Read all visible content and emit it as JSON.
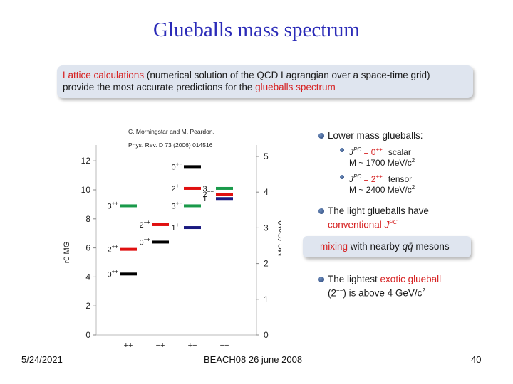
{
  "title": "Glueballs mass spectrum",
  "banner": {
    "part1_red": "Lattice calculations",
    "part1_rest": " (numerical solution of the QCD Lagrangian over a space-time grid)",
    "part2_start": "provide the most accurate predictions for the ",
    "part2_red": "glueballs spectrum"
  },
  "reference": {
    "authors": "C. Morningstar and M. Peardon,",
    "journal": "Phys. Rev. D 73 (2006) 014516"
  },
  "bullets": {
    "lower_mass": "Lower mass glueballs:",
    "scalar_jpc": "J",
    "scalar_sup": "PC",
    "scalar_eq": " = 0",
    "scalar_sup2": "++",
    "scalar_label": "scalar",
    "scalar_mass": "M ~ 1700 MeV/c",
    "scalar_mass_sup": "2",
    "tensor_jpc": "J",
    "tensor_sup": "PC",
    "tensor_eq": " = 2",
    "tensor_sup2": "++",
    "tensor_label": "tensor",
    "tensor_mass": "M ~ 2400 MeV/c",
    "tensor_mass_sup": "2",
    "light_line1": "The light glueballs have",
    "light_line2": "conventional ",
    "light_jpc": "J",
    "light_sup": "PC",
    "mixing_red": "mixing",
    "mixing_rest": " with nearby ",
    "mixing_qq": "qq̄",
    "mixing_end": " mesons",
    "exotic_start": "The lightest ",
    "exotic_red": "exotic glueball",
    "exotic_line2": "(2",
    "exotic_sup": "+−",
    "exotic_end": ") is above 4 GeV/c",
    "exotic_sup2": "2"
  },
  "footer": {
    "date": "5/24/2021",
    "event": "BEACH08 26 june 2008",
    "page": "40"
  },
  "colors": {
    "title": "#2b2bb8",
    "accent_red": "#d62020",
    "black_level": "#000000",
    "red_level": "#e01010",
    "green_level": "#1a9a4a",
    "blue_level": "#1a1a80"
  },
  "chart_data": {
    "type": "level-diagram",
    "ylabel_left": "r0 MG",
    "ylabel_right": "MG (GeV)",
    "yticks_left": [
      "0",
      "2",
      "4",
      "6",
      "8",
      "10",
      "12"
    ],
    "yticks_right": [
      "0",
      "1",
      "2",
      "3",
      "4",
      "5"
    ],
    "ylim_left": [
      0,
      12.5
    ],
    "columns": [
      "++",
      "−+",
      "+−",
      "−−"
    ],
    "levels": [
      {
        "label": "0++",
        "column": 0,
        "value": 4.2,
        "color": "black"
      },
      {
        "label": "2++",
        "column": 0,
        "value": 5.9,
        "color": "red"
      },
      {
        "label": "3++",
        "column": 0,
        "value": 8.9,
        "color": "green"
      },
      {
        "label": "0−+",
        "column": 1,
        "value": 6.4,
        "color": "black"
      },
      {
        "label": "2−+",
        "column": 1,
        "value": 7.6,
        "color": "red"
      },
      {
        "label": "0+−",
        "column": 2,
        "value": 11.6,
        "color": "black"
      },
      {
        "label": "2+−",
        "column": 2,
        "value": 10.1,
        "color": "red"
      },
      {
        "label": "3+−",
        "column": 2,
        "value": 8.9,
        "color": "green"
      },
      {
        "label": "1+−",
        "column": 2,
        "value": 7.4,
        "color": "blue"
      },
      {
        "label": "3−−",
        "column": 3,
        "value": 10.1,
        "color": "green"
      },
      {
        "label": "2−−",
        "column": 3,
        "value": 9.7,
        "color": "red"
      },
      {
        "label": "1−−",
        "column": 3,
        "value": 9.4,
        "color": "blue"
      }
    ]
  }
}
